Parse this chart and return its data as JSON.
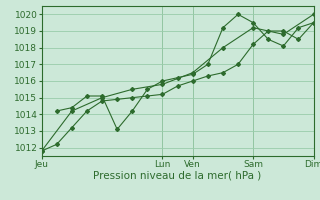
{
  "title": "",
  "xlabel": "Pression niveau de la mer( hPa )",
  "ylabel": "",
  "bg_color": "#cce8d8",
  "grid_color": "#99ccaa",
  "line_color": "#2d6b2d",
  "marker_color": "#2d6b2d",
  "ylim": [
    1011.5,
    1020.5
  ],
  "xlim": [
    0,
    108
  ],
  "yticks": [
    1012,
    1013,
    1014,
    1015,
    1016,
    1017,
    1018,
    1019,
    1020
  ],
  "xtick_positions": [
    0,
    48,
    60,
    84,
    108
  ],
  "xtick_labels": [
    "Jeu",
    "Lun",
    "Ven",
    "Sam",
    "Dim"
  ],
  "vlines": [
    0,
    48,
    60,
    84,
    108
  ],
  "series1_x": [
    0,
    6,
    12,
    18,
    24,
    30,
    36,
    42,
    48,
    54,
    60,
    66,
    72,
    78,
    84,
    90,
    96,
    102,
    108
  ],
  "series1_y": [
    1011.8,
    1012.2,
    1013.2,
    1014.2,
    1014.8,
    1014.9,
    1015.0,
    1015.1,
    1015.2,
    1015.7,
    1016.0,
    1016.3,
    1016.5,
    1017.0,
    1018.2,
    1019.0,
    1019.0,
    1018.5,
    1019.5
  ],
  "series2_x": [
    0,
    12,
    24,
    36,
    48,
    60,
    72,
    84,
    96,
    108
  ],
  "series2_y": [
    1011.8,
    1014.2,
    1015.0,
    1015.5,
    1015.8,
    1016.5,
    1018.0,
    1019.2,
    1018.8,
    1020.0
  ],
  "series3_x": [
    6,
    12,
    18,
    24,
    30,
    36,
    42,
    48,
    54,
    60,
    66,
    72,
    78,
    84,
    90,
    96,
    102,
    108
  ],
  "series3_y": [
    1014.2,
    1014.4,
    1015.1,
    1015.1,
    1013.1,
    1014.2,
    1015.5,
    1016.0,
    1016.2,
    1016.4,
    1017.0,
    1019.2,
    1020.0,
    1019.5,
    1018.5,
    1018.1,
    1019.2,
    1019.5
  ],
  "fontsize_ticks": 6.5,
  "fontsize_xlabel": 7.5
}
